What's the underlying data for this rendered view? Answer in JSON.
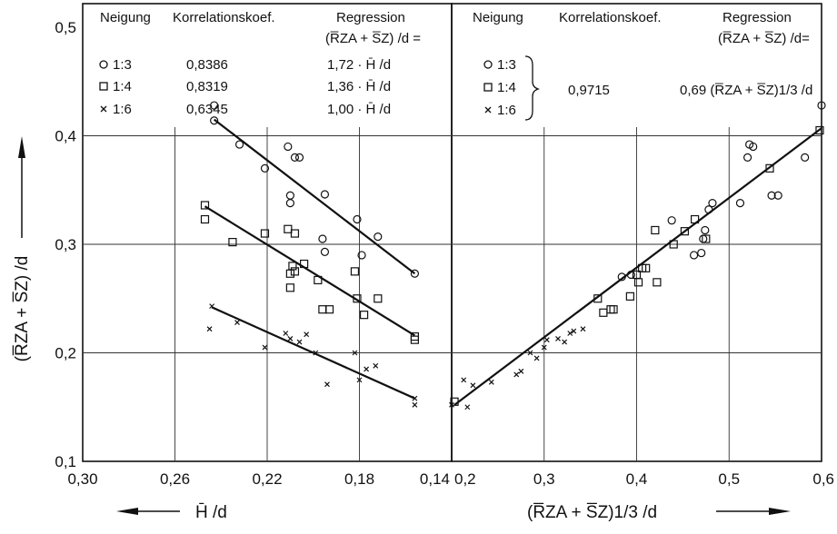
{
  "chart_data": [
    {
      "type": "scatter",
      "title": "",
      "xlabel": "H̄ /d",
      "ylabel": "(R̅ZA + S̅Z) /d",
      "xlim": [
        0.3,
        0.14
      ],
      "ylim": [
        0.1,
        0.5
      ],
      "x_ticks": [
        "0,30",
        "0,26",
        "0,22",
        "0,18",
        "0,14"
      ],
      "y_ticks": [
        "0,1",
        "0,2",
        "0,3",
        "0,4",
        "0,5"
      ],
      "grid": true,
      "legend_headers": [
        "Neigung",
        "Korrelationskoef.",
        "Regression",
        "(R̅ZA + S̅Z) /d ="
      ],
      "legend": [
        {
          "marker": "circle",
          "label": "1:3",
          "r": "0,8386",
          "regression": "1,72 · H̄ /d"
        },
        {
          "marker": "square",
          "label": "1:4",
          "r": "0,8319",
          "regression": "1,36 · H̄ /d"
        },
        {
          "marker": "cross",
          "label": "1:6",
          "r": "0,6345",
          "regression": "1,00 · H̄ /d"
        }
      ],
      "series": [
        {
          "name": "1:3",
          "marker": "circle",
          "points": [
            [
              0.243,
              0.428
            ],
            [
              0.243,
              0.414
            ],
            [
              0.232,
              0.392
            ],
            [
              0.221,
              0.37
            ],
            [
              0.211,
              0.39
            ],
            [
              0.21,
              0.345
            ],
            [
              0.21,
              0.338
            ],
            [
              0.208,
              0.38
            ],
            [
              0.206,
              0.38
            ],
            [
              0.195,
              0.346
            ],
            [
              0.196,
              0.305
            ],
            [
              0.195,
              0.293
            ],
            [
              0.181,
              0.323
            ],
            [
              0.179,
              0.29
            ],
            [
              0.172,
              0.307
            ],
            [
              0.156,
              0.273
            ]
          ]
        },
        {
          "name": "1:4",
          "marker": "square",
          "points": [
            [
              0.247,
              0.336
            ],
            [
              0.247,
              0.323
            ],
            [
              0.235,
              0.302
            ],
            [
              0.221,
              0.31
            ],
            [
              0.211,
              0.314
            ],
            [
              0.21,
              0.273
            ],
            [
              0.21,
              0.26
            ],
            [
              0.209,
              0.28
            ],
            [
              0.208,
              0.31
            ],
            [
              0.208,
              0.275
            ],
            [
              0.204,
              0.282
            ],
            [
              0.198,
              0.267
            ],
            [
              0.196,
              0.24
            ],
            [
              0.193,
              0.24
            ],
            [
              0.182,
              0.275
            ],
            [
              0.181,
              0.25
            ],
            [
              0.178,
              0.235
            ],
            [
              0.172,
              0.25
            ],
            [
              0.156,
              0.215
            ],
            [
              0.156,
              0.212
            ]
          ]
        },
        {
          "name": "1:6",
          "marker": "cross",
          "points": [
            [
              0.245,
              0.222
            ],
            [
              0.244,
              0.243
            ],
            [
              0.233,
              0.228
            ],
            [
              0.221,
              0.205
            ],
            [
              0.212,
              0.218
            ],
            [
              0.21,
              0.213
            ],
            [
              0.206,
              0.21
            ],
            [
              0.203,
              0.217
            ],
            [
              0.199,
              0.2
            ],
            [
              0.194,
              0.171
            ],
            [
              0.182,
              0.2
            ],
            [
              0.18,
              0.175
            ],
            [
              0.177,
              0.185
            ],
            [
              0.173,
              0.188
            ],
            [
              0.156,
              0.158
            ],
            [
              0.156,
              0.152
            ]
          ]
        }
      ],
      "fit_lines": [
        {
          "name": "1:3",
          "from": [
            0.243,
            0.415
          ],
          "to": [
            0.156,
            0.273
          ]
        },
        {
          "name": "1:4",
          "from": [
            0.247,
            0.335
          ],
          "to": [
            0.156,
            0.216
          ]
        },
        {
          "name": "1:6",
          "from": [
            0.244,
            0.242
          ],
          "to": [
            0.156,
            0.158
          ]
        }
      ]
    },
    {
      "type": "scatter",
      "title": "",
      "xlabel": "(R̅ZA + S̅Z)1/3 /d",
      "ylabel": "(R̅ZA + S̅Z) /d",
      "xlim": [
        0.2,
        0.6
      ],
      "ylim": [
        0.1,
        0.5
      ],
      "x_ticks": [
        "0,2",
        "0,3",
        "0,4",
        "0,5",
        "0,6"
      ],
      "grid": true,
      "legend_headers": [
        "Neigung",
        "Korrelationskoef.",
        "Regression",
        "(R̅ZA + S̅Z) /d="
      ],
      "legend": [
        {
          "marker": "circle",
          "label": "1:3"
        },
        {
          "marker": "square",
          "label": "1:4"
        },
        {
          "marker": "cross",
          "label": "1:6"
        }
      ],
      "legend_r": "0,9715",
      "legend_regression": "0,69 (R̅ZA + S̅Z)1/3 /d",
      "series": [
        {
          "name": "1:3",
          "marker": "circle",
          "points": [
            [
              0.384,
              0.27
            ],
            [
              0.394,
              0.272
            ],
            [
              0.438,
              0.322
            ],
            [
              0.462,
              0.29
            ],
            [
              0.47,
              0.292
            ],
            [
              0.472,
              0.305
            ],
            [
              0.474,
              0.313
            ],
            [
              0.478,
              0.332
            ],
            [
              0.482,
              0.338
            ],
            [
              0.512,
              0.338
            ],
            [
              0.52,
              0.38
            ],
            [
              0.522,
              0.392
            ],
            [
              0.526,
              0.39
            ],
            [
              0.546,
              0.345
            ],
            [
              0.553,
              0.345
            ],
            [
              0.582,
              0.38
            ],
            [
              0.6,
              0.428
            ]
          ]
        },
        {
          "name": "1:4",
          "marker": "square",
          "points": [
            [
              0.203,
              0.155
            ],
            [
              0.358,
              0.25
            ],
            [
              0.364,
              0.237
            ],
            [
              0.372,
              0.24
            ],
            [
              0.375,
              0.24
            ],
            [
              0.393,
              0.252
            ],
            [
              0.4,
              0.272
            ],
            [
              0.402,
              0.265
            ],
            [
              0.406,
              0.278
            ],
            [
              0.41,
              0.278
            ],
            [
              0.42,
              0.313
            ],
            [
              0.422,
              0.265
            ],
            [
              0.44,
              0.3
            ],
            [
              0.452,
              0.312
            ],
            [
              0.463,
              0.323
            ],
            [
              0.475,
              0.305
            ],
            [
              0.544,
              0.37
            ],
            [
              0.598,
              0.405
            ]
          ]
        },
        {
          "name": "1:6",
          "marker": "cross",
          "points": [
            [
              0.2,
              0.152
            ],
            [
              0.213,
              0.175
            ],
            [
              0.217,
              0.15
            ],
            [
              0.223,
              0.17
            ],
            [
              0.243,
              0.173
            ],
            [
              0.27,
              0.18
            ],
            [
              0.275,
              0.183
            ],
            [
              0.285,
              0.2
            ],
            [
              0.292,
              0.195
            ],
            [
              0.3,
              0.205
            ],
            [
              0.303,
              0.212
            ],
            [
              0.315,
              0.213
            ],
            [
              0.322,
              0.21
            ],
            [
              0.328,
              0.218
            ],
            [
              0.332,
              0.22
            ],
            [
              0.342,
              0.222
            ]
          ]
        }
      ],
      "fit_lines": [
        {
          "name": "all",
          "from": [
            0.203,
            0.152
          ],
          "to": [
            0.6,
            0.407
          ]
        }
      ]
    }
  ]
}
